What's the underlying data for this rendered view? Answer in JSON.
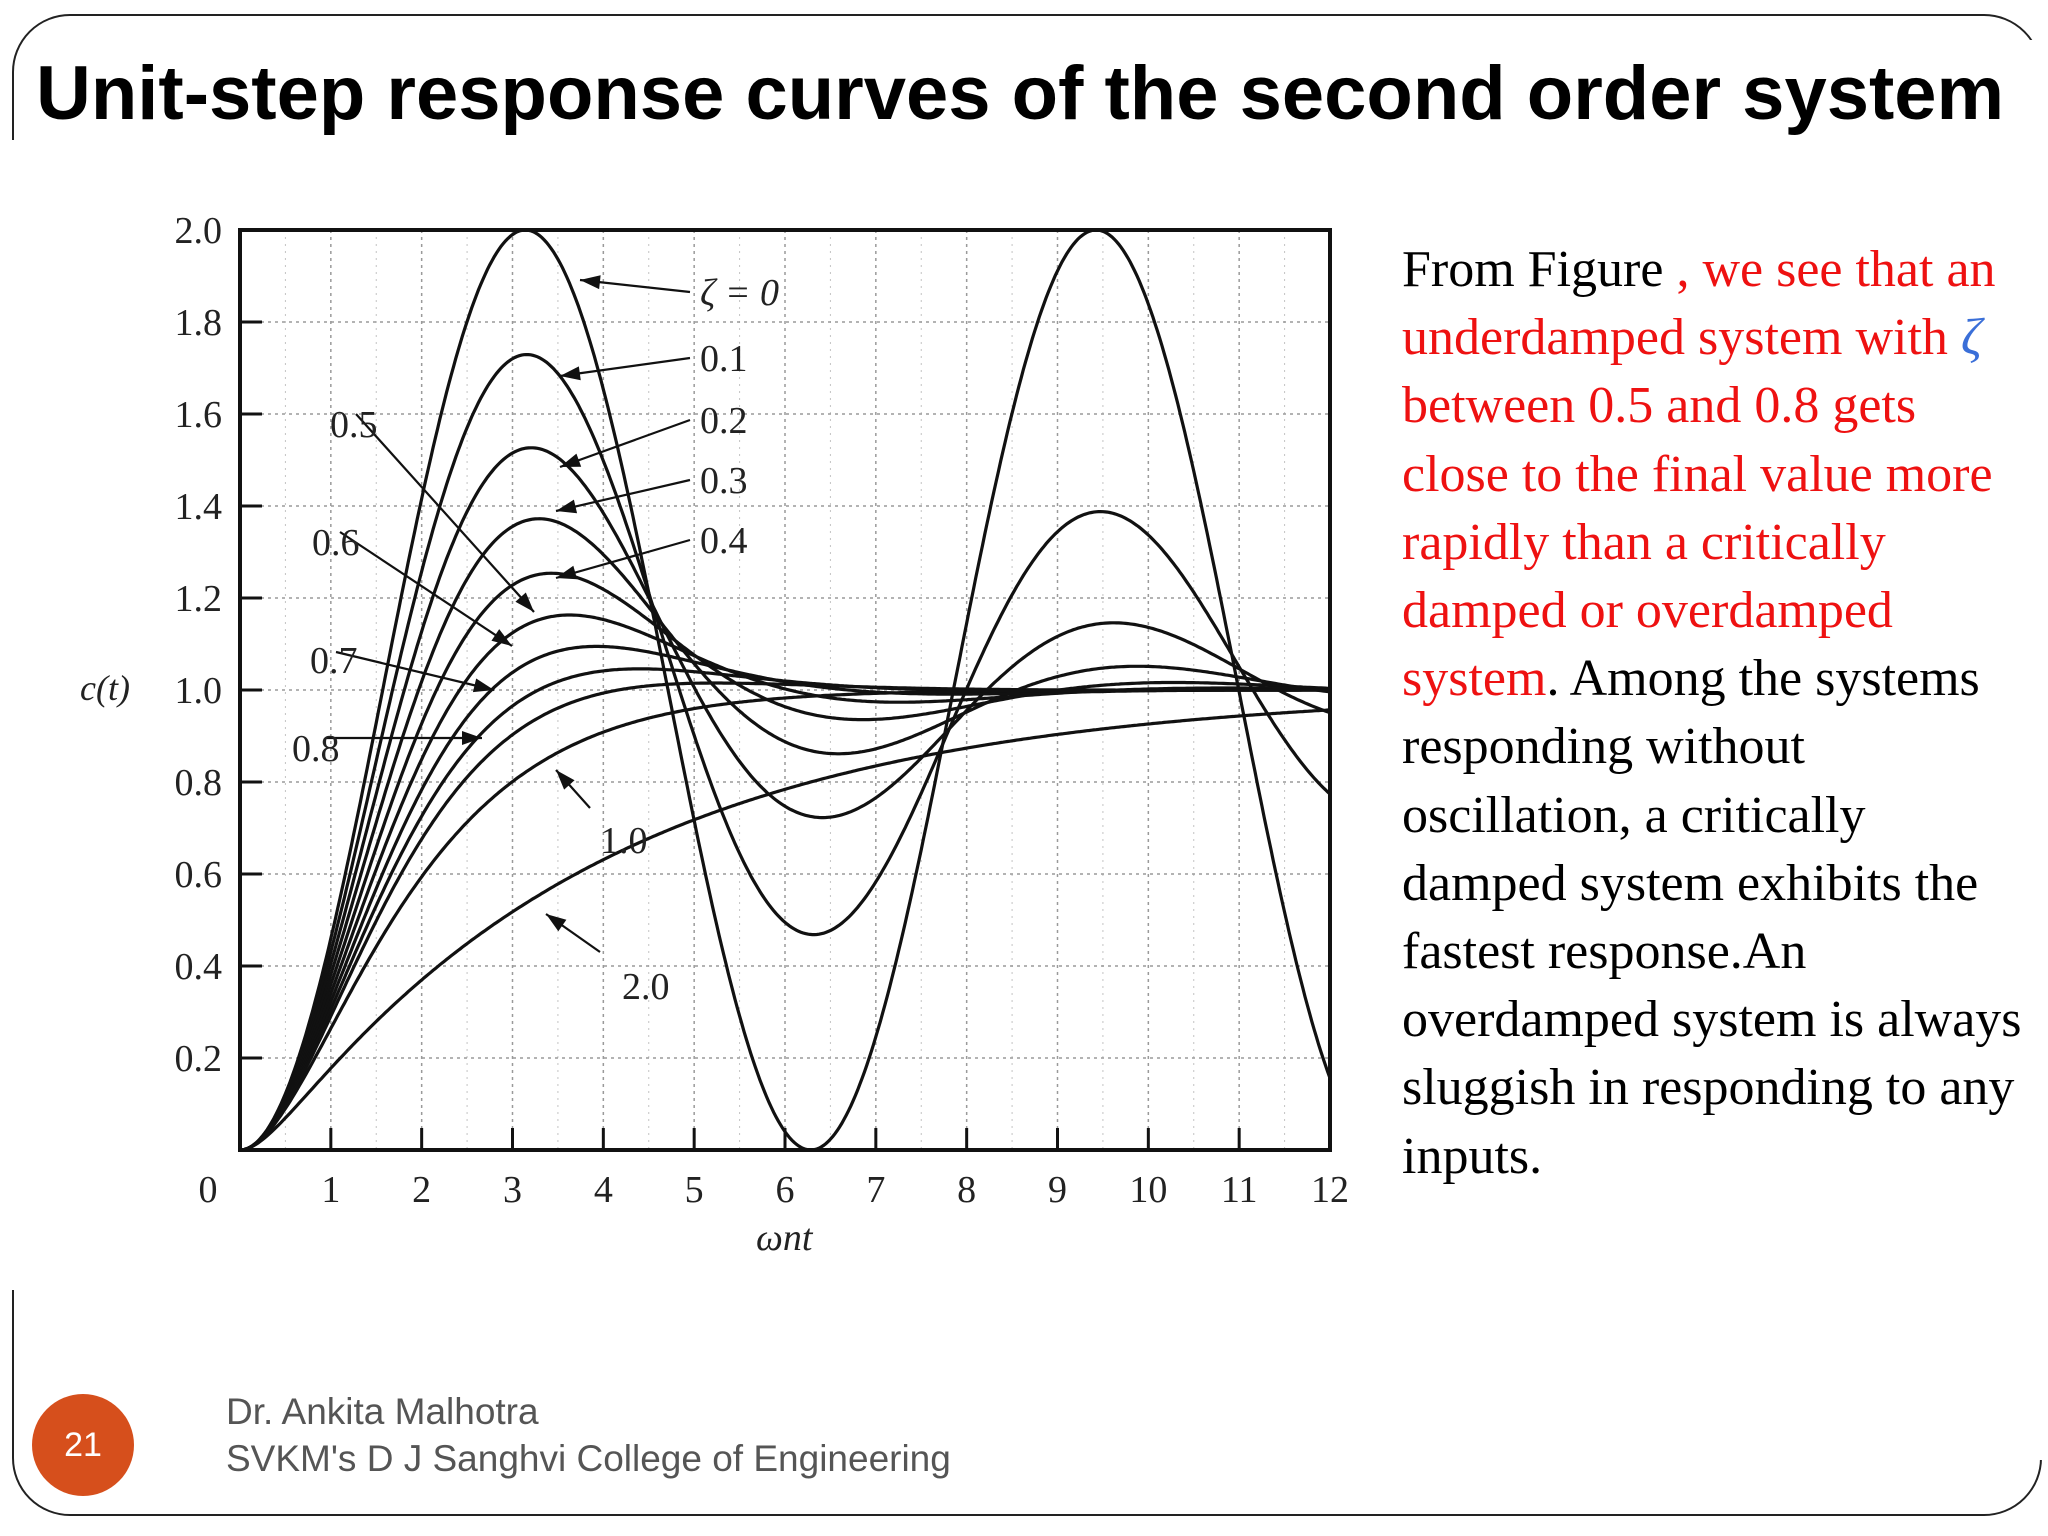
{
  "slide": {
    "title": "Unit-step response curves of the second order system",
    "page_number": "21",
    "footer_author": "Dr. Ankita Malhotra",
    "footer_institution": "SVKM's D J Sanghvi College of Engineering",
    "side_text": {
      "p1": "From Figure",
      "p2": ", we see that an underdamped system with",
      "zeta": "ζ",
      "p3": "between 0.5 and 0.8 gets close to the final value more rapidly than a critically damped or overdamped system",
      "p4": ". Among the systems responding without oscillation, a critically damped system exhibits the fastest response.An overdamped system is always sluggish in responding to any inputs."
    },
    "colors": {
      "text_red": "#ee1111",
      "badge": "#d64f1c",
      "zeta": "#3a6fd8",
      "curve": "#111111"
    }
  },
  "chart_data": {
    "type": "line",
    "xlabel": "ωnt",
    "ylabel": "c(t)",
    "xlim": [
      0,
      12
    ],
    "ylim": [
      0,
      2.0
    ],
    "xticks": [
      0,
      1,
      2,
      3,
      4,
      5,
      6,
      7,
      8,
      9,
      10,
      11,
      12
    ],
    "yticks": [
      0,
      0.2,
      0.4,
      0.6,
      0.8,
      1.0,
      1.2,
      1.4,
      1.6,
      1.8,
      2.0
    ],
    "ytick_labels": [
      "0",
      "0.2",
      "0.4",
      "0.6",
      "0.8",
      "1.0",
      "1.2",
      "1.4",
      "1.6",
      "1.8",
      "2.0"
    ],
    "grid": true,
    "series": [
      {
        "name": "ζ = 0",
        "zeta": 0,
        "x": [
          0,
          1,
          2,
          3,
          3.14,
          4,
          5,
          6,
          6.28,
          7,
          8,
          9,
          9.42,
          10,
          11,
          12
        ],
        "y": [
          0,
          0.46,
          1.42,
          1.99,
          2.0,
          1.65,
          0.72,
          0.04,
          0.0,
          0.25,
          1.15,
          1.91,
          2.0,
          1.84,
          1.0,
          0.16
        ]
      },
      {
        "name": "0.1",
        "zeta": 0.1,
        "x": [
          0,
          1,
          2,
          3,
          3.16,
          4,
          5,
          6,
          6.31,
          7,
          8,
          9,
          9.47,
          10,
          11,
          12
        ],
        "y": [
          0,
          0.44,
          1.31,
          1.72,
          1.73,
          1.48,
          0.96,
          0.53,
          0.49,
          0.61,
          1.04,
          1.36,
          1.39,
          1.33,
          1.04,
          0.77
        ]
      },
      {
        "name": "0.2",
        "zeta": 0.2,
        "x": [
          0,
          1,
          2,
          3,
          3.21,
          4,
          5,
          6,
          6.41,
          7,
          8,
          9,
          10,
          11,
          12
        ],
        "y": [
          0,
          0.43,
          1.24,
          1.52,
          1.53,
          1.37,
          1.02,
          0.81,
          0.79,
          0.85,
          1.02,
          1.12,
          1.1,
          1.02,
          0.96
        ]
      },
      {
        "name": "0.3",
        "zeta": 0.3,
        "x": [
          0,
          1,
          2,
          3,
          3.29,
          4,
          5,
          6,
          7,
          8,
          9,
          10,
          11,
          12
        ],
        "y": [
          0,
          0.41,
          1.15,
          1.37,
          1.37,
          1.27,
          1.04,
          0.91,
          0.92,
          0.99,
          1.04,
          1.03,
          1.0,
          0.99
        ]
      },
      {
        "name": "0.4",
        "zeta": 0.4,
        "x": [
          0,
          1,
          2,
          3,
          3.43,
          4,
          5,
          6,
          7,
          8,
          9,
          10,
          11,
          12
        ],
        "y": [
          0,
          0.4,
          1.06,
          1.24,
          1.25,
          1.19,
          1.05,
          0.97,
          0.97,
          1.0,
          1.01,
          1.01,
          1.0,
          1.0
        ]
      },
      {
        "name": "0.5",
        "zeta": 0.5,
        "x": [
          0,
          1,
          2,
          3,
          3.63,
          4,
          5,
          6,
          7,
          8,
          9,
          10,
          11,
          12
        ],
        "y": [
          0,
          0.38,
          0.98,
          1.14,
          1.16,
          1.14,
          1.05,
          0.99,
          0.99,
          1.0,
          1.0,
          1.0,
          1.0,
          1.0
        ]
      },
      {
        "name": "0.6",
        "zeta": 0.6,
        "x": [
          0,
          1,
          2,
          3,
          3.93,
          5,
          6,
          7,
          8,
          9,
          10,
          11,
          12
        ],
        "y": [
          0,
          0.36,
          0.9,
          1.06,
          1.09,
          1.05,
          1.01,
          1.0,
          1.0,
          1.0,
          1.0,
          1.0,
          1.0
        ]
      },
      {
        "name": "0.7",
        "zeta": 0.7,
        "x": [
          0,
          1,
          2,
          3,
          4,
          4.4,
          5,
          6,
          7,
          8,
          9,
          10,
          11,
          12
        ],
        "y": [
          0,
          0.34,
          0.83,
          0.99,
          1.04,
          1.05,
          1.03,
          1.01,
          1.0,
          1.0,
          1.0,
          1.0,
          1.0,
          1.0
        ]
      },
      {
        "name": "0.8",
        "zeta": 0.8,
        "x": [
          0,
          1,
          2,
          3,
          4,
          5,
          5.24,
          6,
          7,
          8,
          9,
          10,
          11,
          12
        ],
        "y": [
          0,
          0.32,
          0.75,
          0.93,
          0.98,
          1.01,
          1.02,
          1.01,
          1.0,
          1.0,
          1.0,
          1.0,
          1.0,
          1.0
        ]
      },
      {
        "name": "1.0",
        "zeta": 1.0,
        "x": [
          0,
          1,
          2,
          3,
          4,
          5,
          6,
          7,
          8,
          9,
          10,
          11,
          12
        ],
        "y": [
          0,
          0.26,
          0.59,
          0.8,
          0.91,
          0.96,
          0.98,
          0.99,
          1.0,
          1.0,
          1.0,
          1.0,
          1.0
        ]
      },
      {
        "name": "2.0",
        "zeta": 2.0,
        "x": [
          0,
          1,
          2,
          3,
          4,
          5,
          6,
          7,
          8,
          9,
          10,
          11,
          12
        ],
        "y": [
          0,
          0.16,
          0.38,
          0.54,
          0.66,
          0.74,
          0.8,
          0.85,
          0.88,
          0.91,
          0.93,
          0.94,
          0.96
        ]
      }
    ],
    "annotations": [
      {
        "text": "ζ = 0",
        "series": "ζ = 0"
      },
      {
        "text": "0.1",
        "series": "0.1"
      },
      {
        "text": "0.2",
        "series": "0.2"
      },
      {
        "text": "0.3",
        "series": "0.3"
      },
      {
        "text": "0.4",
        "series": "0.4"
      },
      {
        "text": "0.5",
        "series": "0.5"
      },
      {
        "text": "0.6",
        "series": "0.6"
      },
      {
        "text": "0.7",
        "series": "0.7"
      },
      {
        "text": "0.8",
        "series": "0.8"
      },
      {
        "text": "1.0",
        "series": "1.0"
      },
      {
        "text": "2.0",
        "series": "2.0"
      }
    ]
  }
}
